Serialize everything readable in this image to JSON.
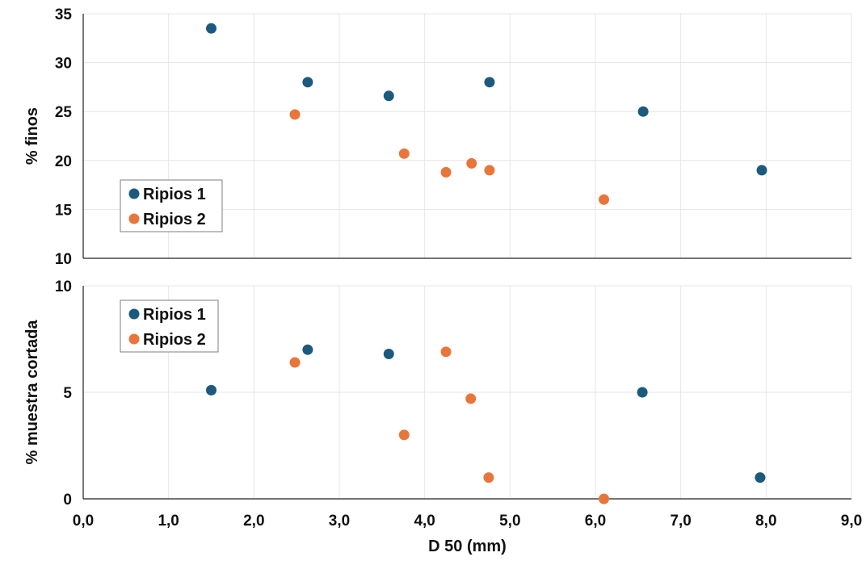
{
  "colors": {
    "series1": "#1b5a7d",
    "series2": "#e8763a"
  },
  "chart_data": [
    {
      "type": "scatter",
      "id": "top",
      "xlabel": "D 50 (mm)",
      "ylabel": "% finos",
      "xlim": [
        0,
        9
      ],
      "ylim": [
        10,
        35
      ],
      "yticks": [
        "10",
        "15",
        "20",
        "25",
        "30",
        "35"
      ],
      "legend": "left-center",
      "series": [
        {
          "name": "Ripios 1",
          "points": [
            [
              1.5,
              33.5
            ],
            [
              2.63,
              28.0
            ],
            [
              3.58,
              26.6
            ],
            [
              4.76,
              28.0
            ],
            [
              6.56,
              25.0
            ],
            [
              7.95,
              19.0
            ]
          ]
        },
        {
          "name": "Ripios 2",
          "points": [
            [
              2.48,
              24.7
            ],
            [
              3.76,
              20.7
            ],
            [
              4.25,
              18.8
            ],
            [
              4.55,
              19.7
            ],
            [
              4.76,
              19.0
            ],
            [
              6.1,
              16.0
            ]
          ]
        }
      ]
    },
    {
      "type": "scatter",
      "id": "bottom",
      "xlabel": "D 50 (mm)",
      "ylabel": "% muestra cortada",
      "xlim": [
        0,
        9
      ],
      "ylim": [
        0,
        10
      ],
      "xticks": [
        "0,0",
        "1,0",
        "2,0",
        "3,0",
        "4,0",
        "5,0",
        "6,0",
        "7,0",
        "8,0",
        "9,0"
      ],
      "yticks": [
        "0",
        "5",
        "10"
      ],
      "legend": "top-left",
      "series": [
        {
          "name": "Ripios 1",
          "points": [
            [
              1.5,
              5.1
            ],
            [
              2.63,
              7.0
            ],
            [
              3.58,
              6.8
            ],
            [
              6.55,
              5.0
            ],
            [
              7.93,
              1.0
            ]
          ]
        },
        {
          "name": "Ripios 2",
          "points": [
            [
              2.48,
              6.4
            ],
            [
              3.76,
              3.0
            ],
            [
              4.25,
              6.9
            ],
            [
              4.54,
              4.7
            ],
            [
              4.75,
              1.0
            ],
            [
              6.1,
              0.0
            ]
          ]
        }
      ]
    }
  ]
}
